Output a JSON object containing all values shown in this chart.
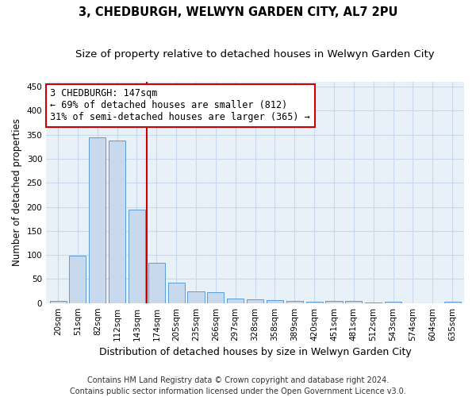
{
  "title": "3, CHEDBURGH, WELWYN GARDEN CITY, AL7 2PU",
  "subtitle": "Size of property relative to detached houses in Welwyn Garden City",
  "xlabel": "Distribution of detached houses by size in Welwyn Garden City",
  "ylabel": "Number of detached properties",
  "bar_labels": [
    "20sqm",
    "51sqm",
    "82sqm",
    "112sqm",
    "143sqm",
    "174sqm",
    "205sqm",
    "235sqm",
    "266sqm",
    "297sqm",
    "328sqm",
    "358sqm",
    "389sqm",
    "420sqm",
    "451sqm",
    "481sqm",
    "512sqm",
    "543sqm",
    "574sqm",
    "604sqm",
    "635sqm"
  ],
  "bar_values": [
    5,
    99,
    344,
    338,
    195,
    84,
    43,
    25,
    23,
    10,
    8,
    6,
    4,
    3,
    5,
    4,
    1,
    2,
    0,
    0,
    2
  ],
  "bar_color": "#c8d9ed",
  "bar_edge_color": "#5b9bd5",
  "vline_index": 4,
  "annotation_text_line1": "3 CHEDBURGH: 147sqm",
  "annotation_text_line2": "← 69% of detached houses are smaller (812)",
  "annotation_text_line3": "31% of semi-detached houses are larger (365) →",
  "annotation_box_color": "#ffffff",
  "annotation_box_edge_color": "#cc0000",
  "vline_color": "#cc0000",
  "footer_line1": "Contains HM Land Registry data © Crown copyright and database right 2024.",
  "footer_line2": "Contains public sector information licensed under the Open Government Licence v3.0.",
  "ylim": [
    0,
    460
  ],
  "yticks": [
    0,
    50,
    100,
    150,
    200,
    250,
    300,
    350,
    400,
    450
  ],
  "plot_bg_color": "#e8f0f8",
  "background_color": "#ffffff",
  "grid_color": "#c8d9ed",
  "title_fontsize": 10.5,
  "subtitle_fontsize": 9.5,
  "axis_label_fontsize": 8.5,
  "tick_fontsize": 7.5,
  "annotation_fontsize": 8.5,
  "footer_fontsize": 7
}
